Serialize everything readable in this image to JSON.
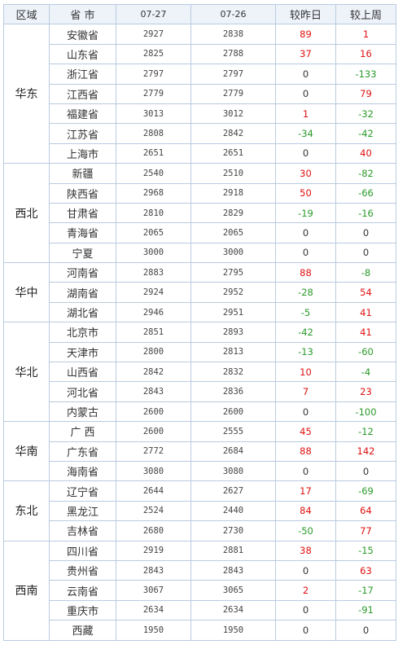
{
  "table": {
    "headers": [
      "区域",
      "省 市",
      "07-27",
      "07-26",
      "较昨日",
      "较上周"
    ],
    "groups": [
      {
        "region": "华东",
        "rows": [
          {
            "province": "安徽省",
            "d0727": "2927",
            "d0726": "2838",
            "vs_yesterday": "89",
            "vs_last_week": "1"
          },
          {
            "province": "山东省",
            "d0727": "2825",
            "d0726": "2788",
            "vs_yesterday": "37",
            "vs_last_week": "16"
          },
          {
            "province": "浙江省",
            "d0727": "2797",
            "d0726": "2797",
            "vs_yesterday": "0",
            "vs_last_week": "-133"
          },
          {
            "province": "江西省",
            "d0727": "2779",
            "d0726": "2779",
            "vs_yesterday": "0",
            "vs_last_week": "79"
          },
          {
            "province": "福建省",
            "d0727": "3013",
            "d0726": "3012",
            "vs_yesterday": "1",
            "vs_last_week": "-32"
          },
          {
            "province": "江苏省",
            "d0727": "2808",
            "d0726": "2842",
            "vs_yesterday": "-34",
            "vs_last_week": "-42"
          },
          {
            "province": "上海市",
            "d0727": "2651",
            "d0726": "2651",
            "vs_yesterday": "0",
            "vs_last_week": "40"
          }
        ]
      },
      {
        "region": "西北",
        "rows": [
          {
            "province": "新疆",
            "d0727": "2540",
            "d0726": "2510",
            "vs_yesterday": "30",
            "vs_last_week": "-82"
          },
          {
            "province": "陕西省",
            "d0727": "2968",
            "d0726": "2918",
            "vs_yesterday": "50",
            "vs_last_week": "-66"
          },
          {
            "province": "甘肃省",
            "d0727": "2810",
            "d0726": "2829",
            "vs_yesterday": "-19",
            "vs_last_week": "-16"
          },
          {
            "province": "青海省",
            "d0727": "2065",
            "d0726": "2065",
            "vs_yesterday": "0",
            "vs_last_week": "0"
          },
          {
            "province": "宁夏",
            "d0727": "3000",
            "d0726": "3000",
            "vs_yesterday": "0",
            "vs_last_week": "0"
          }
        ]
      },
      {
        "region": "华中",
        "rows": [
          {
            "province": "河南省",
            "d0727": "2883",
            "d0726": "2795",
            "vs_yesterday": "88",
            "vs_last_week": "-8"
          },
          {
            "province": "湖南省",
            "d0727": "2924",
            "d0726": "2952",
            "vs_yesterday": "-28",
            "vs_last_week": "54"
          },
          {
            "province": "湖北省",
            "d0727": "2946",
            "d0726": "2951",
            "vs_yesterday": "-5",
            "vs_last_week": "41"
          }
        ]
      },
      {
        "region": "华北",
        "rows": [
          {
            "province": "北京市",
            "d0727": "2851",
            "d0726": "2893",
            "vs_yesterday": "-42",
            "vs_last_week": "41"
          },
          {
            "province": "天津市",
            "d0727": "2800",
            "d0726": "2813",
            "vs_yesterday": "-13",
            "vs_last_week": "-60"
          },
          {
            "province": "山西省",
            "d0727": "2842",
            "d0726": "2832",
            "vs_yesterday": "10",
            "vs_last_week": "-4"
          },
          {
            "province": "河北省",
            "d0727": "2843",
            "d0726": "2836",
            "vs_yesterday": "7",
            "vs_last_week": "23"
          },
          {
            "province": "内蒙古",
            "d0727": "2600",
            "d0726": "2600",
            "vs_yesterday": "0",
            "vs_last_week": "-100"
          }
        ]
      },
      {
        "region": "华南",
        "rows": [
          {
            "province": "广 西",
            "d0727": "2600",
            "d0726": "2555",
            "vs_yesterday": "45",
            "vs_last_week": "-12"
          },
          {
            "province": "广东省",
            "d0727": "2772",
            "d0726": "2684",
            "vs_yesterday": "88",
            "vs_last_week": "142"
          },
          {
            "province": "海南省",
            "d0727": "3080",
            "d0726": "3080",
            "vs_yesterday": "0",
            "vs_last_week": "0"
          }
        ]
      },
      {
        "region": "东北",
        "rows": [
          {
            "province": "辽宁省",
            "d0727": "2644",
            "d0726": "2627",
            "vs_yesterday": "17",
            "vs_last_week": "-69"
          },
          {
            "province": "黑龙江",
            "d0727": "2524",
            "d0726": "2440",
            "vs_yesterday": "84",
            "vs_last_week": "64"
          },
          {
            "province": "吉林省",
            "d0727": "2680",
            "d0726": "2730",
            "vs_yesterday": "-50",
            "vs_last_week": "77"
          }
        ]
      },
      {
        "region": "西南",
        "rows": [
          {
            "province": "四川省",
            "d0727": "2919",
            "d0726": "2881",
            "vs_yesterday": "38",
            "vs_last_week": "-15"
          },
          {
            "province": "贵州省",
            "d0727": "2843",
            "d0726": "2843",
            "vs_yesterday": "0",
            "vs_last_week": "63"
          },
          {
            "province": "云南省",
            "d0727": "3067",
            "d0726": "3065",
            "vs_yesterday": "2",
            "vs_last_week": "-17"
          },
          {
            "province": "重庆市",
            "d0727": "2634",
            "d0726": "2634",
            "vs_yesterday": "0",
            "vs_last_week": "-91"
          },
          {
            "province": "西藏",
            "d0727": "1950",
            "d0726": "1950",
            "vs_yesterday": "0",
            "vs_last_week": "0"
          }
        ]
      }
    ]
  },
  "colors": {
    "positive": "#e01010",
    "negative": "#2a9a2a",
    "zero": "#333333",
    "border": "#b9cbe0",
    "header_bg": "#eef3fa"
  }
}
